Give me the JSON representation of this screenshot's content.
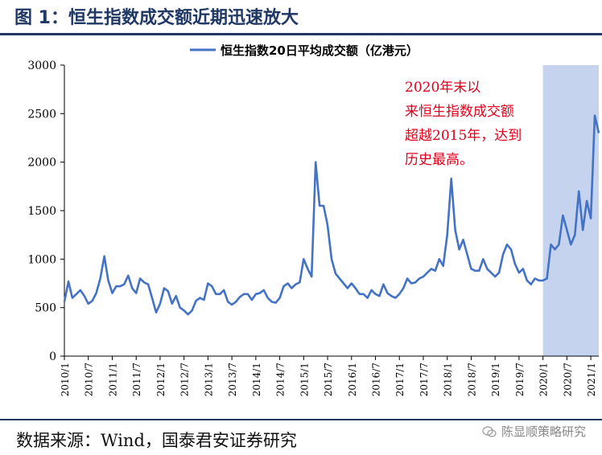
{
  "figure": {
    "title": "图 1：恒生指数成交额近期迅速放大",
    "source": "数据来源：Wind，国泰君安证券研究",
    "watermark": "陈显顺策略研究",
    "colors": {
      "line": "#4472c4",
      "highlight": "#c5d3ee",
      "annotation": "#e0001b",
      "title": "#1f3864"
    }
  },
  "chart_data": {
    "type": "line",
    "title": "",
    "xlabel": "",
    "ylabel": "",
    "ylim": [
      0,
      3000
    ],
    "yticks": [
      0,
      500,
      1000,
      1500,
      2000,
      2500,
      3000
    ],
    "xticks": [
      "2010/1",
      "2010/7",
      "2011/1",
      "2011/7",
      "2012/1",
      "2012/7",
      "2013/1",
      "2013/7",
      "2014/1",
      "2014/7",
      "2015/1",
      "2015/7",
      "2016/1",
      "2016/7",
      "2017/1",
      "2017/7",
      "2018/1",
      "2018/7",
      "2019/1",
      "2019/7",
      "2020/1",
      "2020/7",
      "2021/1"
    ],
    "grid": false,
    "legend": "top-right",
    "highlight_start": "2020/1",
    "annotation": "2020年末以来恒生指数成交额超越2015年，达到历史最高。",
    "series": [
      {
        "name": "恒生指数20日平均成交额（亿港元）",
        "points": [
          [
            "2010/1",
            560
          ],
          [
            "2010/2",
            770
          ],
          [
            "2010/3",
            600
          ],
          [
            "2010/4",
            640
          ],
          [
            "2010/5",
            680
          ],
          [
            "2010/6",
            620
          ],
          [
            "2010/7",
            540
          ],
          [
            "2010/8",
            570
          ],
          [
            "2010/9",
            650
          ],
          [
            "2010/10",
            800
          ],
          [
            "2010/11",
            1030
          ],
          [
            "2010/12",
            780
          ],
          [
            "2011/1",
            650
          ],
          [
            "2011/2",
            720
          ],
          [
            "2011/3",
            720
          ],
          [
            "2011/4",
            740
          ],
          [
            "2011/5",
            830
          ],
          [
            "2011/6",
            700
          ],
          [
            "2011/7",
            650
          ],
          [
            "2011/8",
            800
          ],
          [
            "2011/9",
            760
          ],
          [
            "2011/10",
            740
          ],
          [
            "2011/11",
            600
          ],
          [
            "2011/12",
            450
          ],
          [
            "2012/1",
            540
          ],
          [
            "2012/2",
            700
          ],
          [
            "2012/3",
            670
          ],
          [
            "2012/4",
            540
          ],
          [
            "2012/5",
            620
          ],
          [
            "2012/6",
            500
          ],
          [
            "2012/7",
            470
          ],
          [
            "2012/8",
            430
          ],
          [
            "2012/9",
            470
          ],
          [
            "2012/10",
            570
          ],
          [
            "2012/11",
            600
          ],
          [
            "2012/12",
            580
          ],
          [
            "2013/1",
            750
          ],
          [
            "2013/2",
            720
          ],
          [
            "2013/3",
            640
          ],
          [
            "2013/4",
            640
          ],
          [
            "2013/5",
            680
          ],
          [
            "2013/6",
            560
          ],
          [
            "2013/7",
            530
          ],
          [
            "2013/8",
            560
          ],
          [
            "2013/9",
            610
          ],
          [
            "2013/10",
            640
          ],
          [
            "2013/11",
            640
          ],
          [
            "2013/12",
            580
          ],
          [
            "2014/1",
            640
          ],
          [
            "2014/2",
            650
          ],
          [
            "2014/3",
            680
          ],
          [
            "2014/4",
            600
          ],
          [
            "2014/5",
            560
          ],
          [
            "2014/6",
            550
          ],
          [
            "2014/7",
            600
          ],
          [
            "2014/8",
            720
          ],
          [
            "2014/9",
            750
          ],
          [
            "2014/10",
            700
          ],
          [
            "2014/11",
            740
          ],
          [
            "2014/12",
            760
          ],
          [
            "2015/1",
            1000
          ],
          [
            "2015/2",
            900
          ],
          [
            "2015/3",
            820
          ],
          [
            "2015/4",
            2000
          ],
          [
            "2015/5",
            1550
          ],
          [
            "2015/6",
            1550
          ],
          [
            "2015/7",
            1350
          ],
          [
            "2015/8",
            1000
          ],
          [
            "2015/9",
            850
          ],
          [
            "2015/10",
            800
          ],
          [
            "2015/11",
            750
          ],
          [
            "2015/12",
            700
          ],
          [
            "2016/1",
            750
          ],
          [
            "2016/2",
            700
          ],
          [
            "2016/3",
            640
          ],
          [
            "2016/4",
            640
          ],
          [
            "2016/5",
            600
          ],
          [
            "2016/6",
            680
          ],
          [
            "2016/7",
            640
          ],
          [
            "2016/8",
            620
          ],
          [
            "2016/9",
            740
          ],
          [
            "2016/10",
            650
          ],
          [
            "2016/11",
            620
          ],
          [
            "2016/12",
            600
          ],
          [
            "2017/1",
            640
          ],
          [
            "2017/2",
            700
          ],
          [
            "2017/3",
            800
          ],
          [
            "2017/4",
            750
          ],
          [
            "2017/5",
            760
          ],
          [
            "2017/6",
            800
          ],
          [
            "2017/7",
            820
          ],
          [
            "2017/8",
            860
          ],
          [
            "2017/9",
            900
          ],
          [
            "2017/10",
            880
          ],
          [
            "2017/11",
            1000
          ],
          [
            "2017/12",
            930
          ],
          [
            "2018/1",
            1250
          ],
          [
            "2018/2",
            1830
          ],
          [
            "2018/3",
            1300
          ],
          [
            "2018/4",
            1100
          ],
          [
            "2018/5",
            1200
          ],
          [
            "2018/6",
            1050
          ],
          [
            "2018/7",
            900
          ],
          [
            "2018/8",
            880
          ],
          [
            "2018/9",
            880
          ],
          [
            "2018/10",
            1000
          ],
          [
            "2018/11",
            900
          ],
          [
            "2018/12",
            860
          ],
          [
            "2019/1",
            820
          ],
          [
            "2019/2",
            860
          ],
          [
            "2019/3",
            1050
          ],
          [
            "2019/4",
            1150
          ],
          [
            "2019/5",
            1100
          ],
          [
            "2019/6",
            950
          ],
          [
            "2019/7",
            860
          ],
          [
            "2019/8",
            900
          ],
          [
            "2019/9",
            780
          ],
          [
            "2019/10",
            740
          ],
          [
            "2019/11",
            800
          ],
          [
            "2019/12",
            780
          ],
          [
            "2020/1",
            780
          ],
          [
            "2020/2",
            800
          ],
          [
            "2020/3",
            1150
          ],
          [
            "2020/4",
            1100
          ],
          [
            "2020/5",
            1150
          ],
          [
            "2020/6",
            1450
          ],
          [
            "2020/7",
            1300
          ],
          [
            "2020/8",
            1150
          ],
          [
            "2020/9",
            1250
          ],
          [
            "2020/10",
            1700
          ],
          [
            "2020/11",
            1300
          ],
          [
            "2020/12",
            1600
          ],
          [
            "2021/1",
            1420
          ],
          [
            "2021/2",
            2480
          ],
          [
            "2021/3",
            2300
          ]
        ]
      }
    ]
  }
}
